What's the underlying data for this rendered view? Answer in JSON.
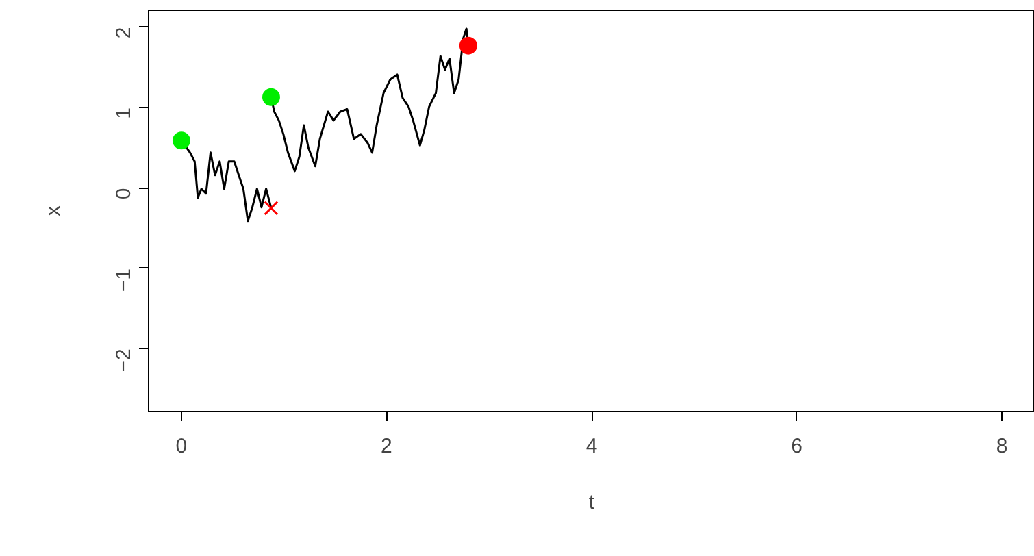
{
  "chart_data": {
    "type": "line",
    "xlabel": "t",
    "ylabel": "x",
    "xlim": [
      -0.32,
      8.32
    ],
    "ylim": [
      -2.78,
      2.21
    ],
    "xticks": [
      0,
      2,
      4,
      6,
      8
    ],
    "yticks": [
      -2,
      -1,
      0,
      1,
      2
    ],
    "series": [
      {
        "color": "#000000",
        "x": [
          0.0,
          0.084,
          0.129,
          0.16,
          0.195,
          0.24,
          0.284,
          0.328,
          0.373,
          0.417,
          0.462,
          0.515,
          0.559,
          0.604,
          0.648,
          0.692,
          0.737,
          0.781,
          0.826,
          0.875
        ],
        "values": [
          0.59,
          0.44,
          0.33,
          -0.12,
          -0.01,
          -0.07,
          0.44,
          0.16,
          0.33,
          -0.01,
          0.33,
          0.33,
          0.16,
          -0.01,
          -0.41,
          -0.24,
          -0.01,
          -0.24,
          -0.01,
          -0.25
        ]
      },
      {
        "color": "#000000",
        "x": [
          0.875,
          0.905,
          0.95,
          0.994,
          1.039,
          1.105,
          1.15,
          1.194,
          1.238,
          1.305,
          1.35,
          1.429,
          1.483,
          1.549,
          1.616,
          1.682,
          1.749,
          1.816,
          1.86,
          1.904,
          1.971,
          2.037,
          2.104,
          2.157,
          2.215,
          2.259,
          2.326,
          2.37,
          2.415,
          2.481,
          2.526,
          2.57,
          2.614,
          2.659,
          2.703,
          2.748,
          2.779,
          2.797
        ],
        "values": [
          1.13,
          0.95,
          0.84,
          0.67,
          0.44,
          0.21,
          0.39,
          0.78,
          0.5,
          0.27,
          0.61,
          0.95,
          0.84,
          0.95,
          0.98,
          0.61,
          0.67,
          0.56,
          0.44,
          0.78,
          1.18,
          1.35,
          1.41,
          1.12,
          1.01,
          0.84,
          0.53,
          0.73,
          1.01,
          1.18,
          1.64,
          1.47,
          1.61,
          1.18,
          1.35,
          1.86,
          1.98,
          1.77
        ]
      },
      {
        "type": "scatter",
        "marker": "circle",
        "color": "#00ee00",
        "x": [
          0.0,
          0.875
        ],
        "values": [
          0.59,
          1.13
        ]
      },
      {
        "type": "scatter",
        "marker": "cross",
        "color": "#ff0000",
        "x": [
          0.875
        ],
        "values": [
          -0.25
        ]
      },
      {
        "type": "scatter",
        "marker": "circle",
        "color": "#ff0000",
        "x": [
          2.797
        ],
        "values": [
          1.77
        ]
      }
    ]
  }
}
